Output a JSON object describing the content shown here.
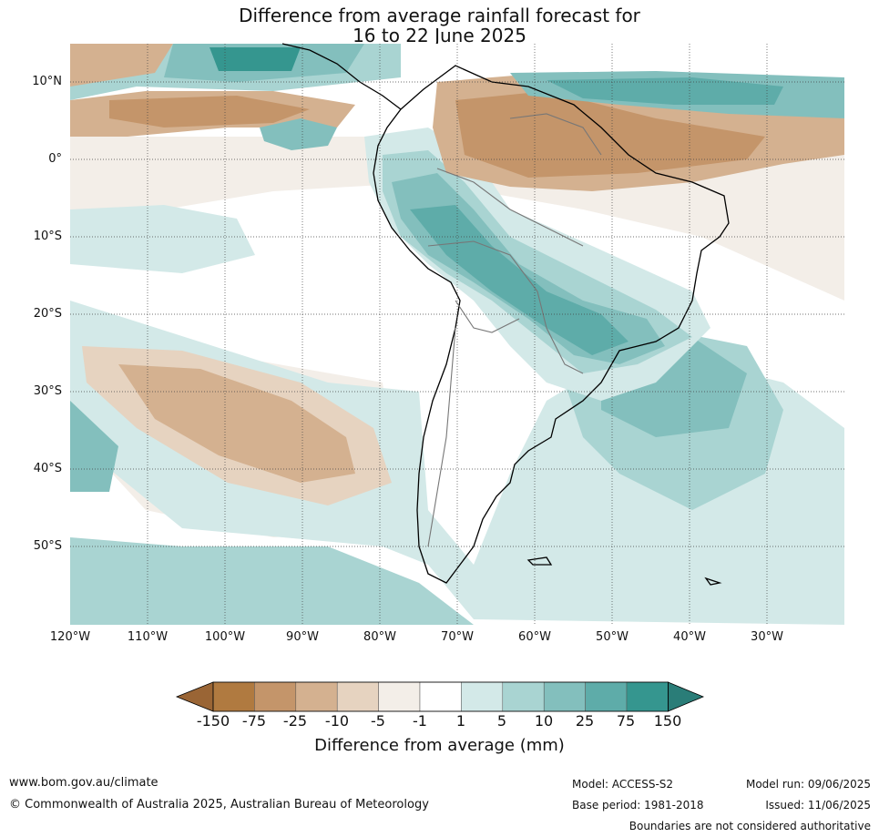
{
  "title_line1": "Difference from average rainfall forecast for",
  "title_line2": "16 to 22 June 2025",
  "map": {
    "lat_labels": [
      "10°N",
      "0°",
      "10°S",
      "20°S",
      "30°S",
      "40°S",
      "50°S"
    ],
    "lon_labels": [
      "120°W",
      "110°W",
      "100°W",
      "90°W",
      "80°W",
      "70°W",
      "60°W",
      "50°W",
      "40°W",
      "30°W"
    ]
  },
  "colorbar": {
    "title": "Difference from average (mm)",
    "ticks": [
      "-150",
      "-75",
      "-25",
      "-10",
      "-5",
      "-1",
      "1",
      "5",
      "10",
      "25",
      "75",
      "150"
    ],
    "colors": [
      "#9a6535",
      "#b07a40",
      "#c4956a",
      "#d4b190",
      "#e6d3c0",
      "#f3eee8",
      "#ffffff",
      "#d3e9e8",
      "#a9d4d2",
      "#83bfbd",
      "#5eaca9",
      "#35968f",
      "#2a7d78"
    ]
  },
  "footer": {
    "website": "www.bom.gov.au/climate",
    "copyright": "© Commonwealth of Australia 2025, Australian Bureau of Meteorology",
    "model": "Model: ACCESS-S2",
    "model_run": "Model run: 09/06/2025",
    "base_period": "Base period: 1981-2018",
    "issued": "Issued: 11/06/2025",
    "disclaimer": "Boundaries are not considered authoritative"
  }
}
